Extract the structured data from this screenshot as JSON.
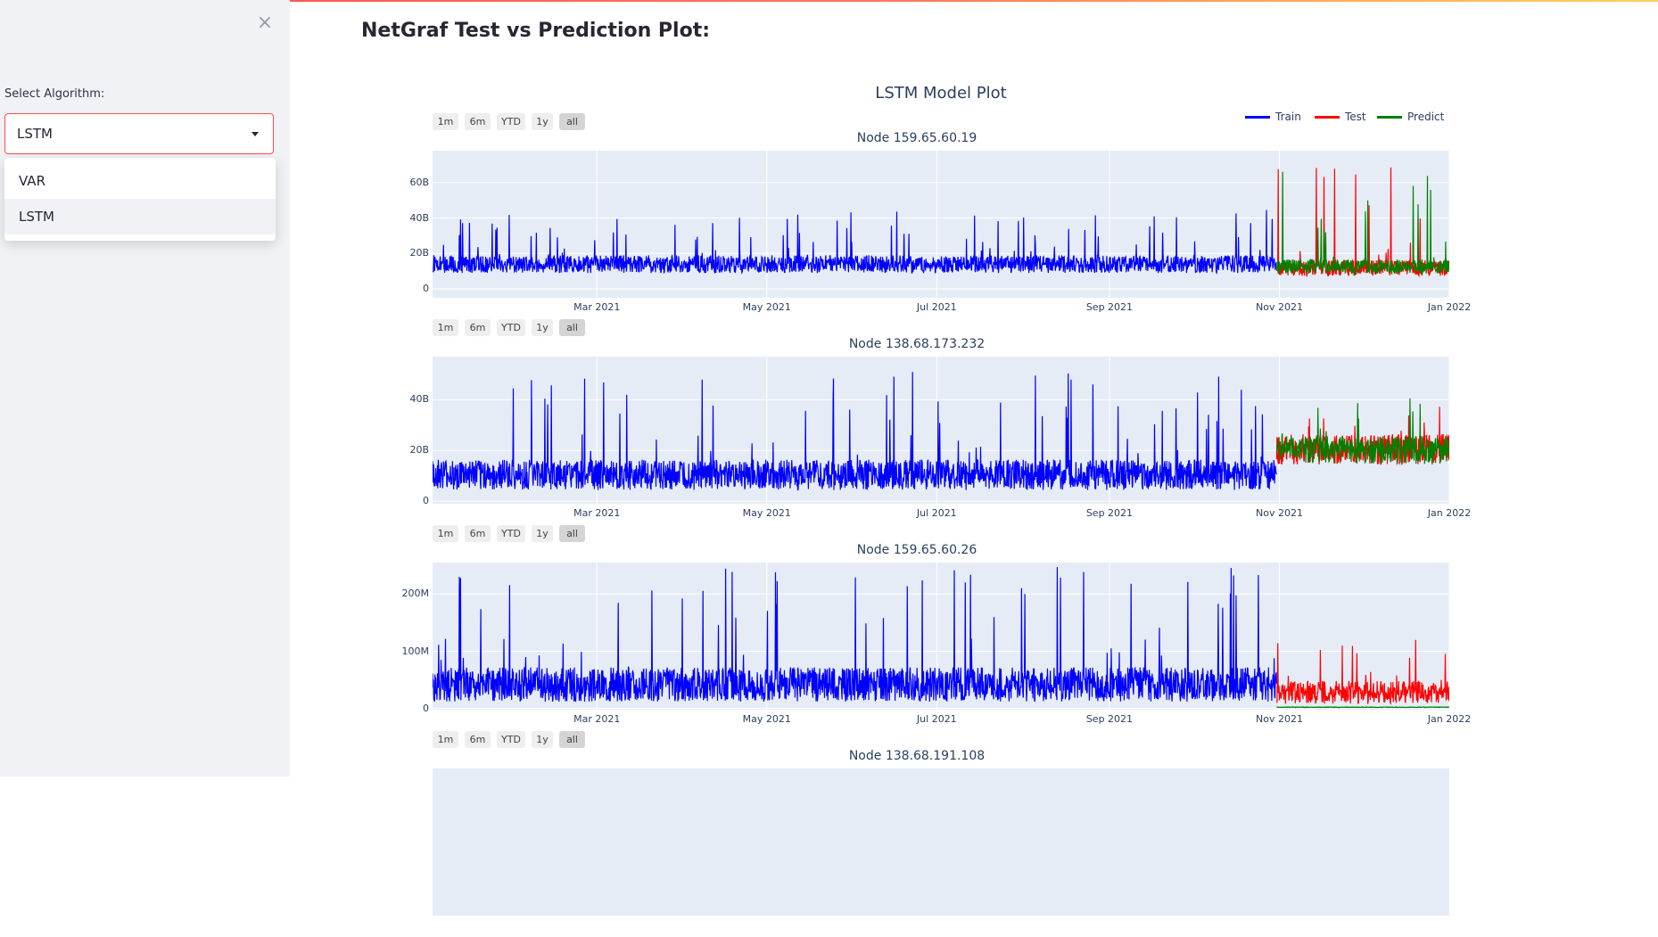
{
  "sidebar": {
    "close_label": "×",
    "select_label": "Select Algorithm:",
    "selected_value": "LSTM",
    "options": [
      "VAR",
      "LSTM"
    ]
  },
  "main": {
    "title": "NetGraf Test vs Prediction Plot:"
  },
  "figure": {
    "title": "LSTM Model Plot",
    "legend": [
      "Train",
      "Test",
      "Predict"
    ],
    "range_buttons": [
      "1m",
      "6m",
      "YTD",
      "1y",
      "all"
    ],
    "active_range": "all"
  },
  "colors": {
    "train": "#0000ff",
    "test": "#ff0000",
    "predict": "#008000",
    "plot_bg": "#e5ecf6"
  },
  "chart_data": [
    {
      "type": "line",
      "title": "Node 159.65.60.19",
      "x_range": [
        "2021-01-01",
        "2022-01-01"
      ],
      "x_ticks": [
        "Mar 2021",
        "May 2021",
        "Jul 2021",
        "Sep 2021",
        "Nov 2021",
        "Jan 2022"
      ],
      "y_ticks": [
        "0",
        "20B",
        "40B",
        "60B"
      ],
      "y_range": [
        -5,
        78
      ],
      "series": [
        {
          "name": "Train",
          "x_range": [
            "2021-01-01",
            "2021-10-31"
          ],
          "baseline": 12,
          "spread": 10,
          "max": 45
        },
        {
          "name": "Test",
          "x_range": [
            "2021-10-31",
            "2022-01-01"
          ],
          "baseline": 10,
          "spread": 9,
          "max": 75
        },
        {
          "name": "Predict",
          "x_range": [
            "2021-10-31",
            "2022-01-01"
          ],
          "baseline": 11,
          "spread": 8,
          "max": 70
        }
      ]
    },
    {
      "type": "line",
      "title": "Node 138.68.173.232",
      "x_range": [
        "2021-01-01",
        "2022-01-01"
      ],
      "x_ticks": [
        "Mar 2021",
        "May 2021",
        "Jul 2021",
        "Sep 2021",
        "Nov 2021",
        "Jan 2022"
      ],
      "y_ticks": [
        "0",
        "20B",
        "40B"
      ],
      "y_range": [
        -1,
        57
      ],
      "series": [
        {
          "name": "Train",
          "x_range": [
            "2021-01-01",
            "2021-10-31"
          ],
          "baseline": 8,
          "spread": 12,
          "max": 52
        },
        {
          "name": "Test",
          "x_range": [
            "2021-10-31",
            "2022-01-01"
          ],
          "baseline": 18,
          "spread": 12,
          "max": 43
        },
        {
          "name": "Predict",
          "x_range": [
            "2021-10-31",
            "2022-01-01"
          ],
          "baseline": 18,
          "spread": 11,
          "max": 41
        }
      ]
    },
    {
      "type": "line",
      "title": "Node 159.65.60.26",
      "x_range": [
        "2021-01-01",
        "2022-01-01"
      ],
      "x_ticks": [
        "Mar 2021",
        "May 2021",
        "Jul 2021",
        "Sep 2021",
        "Nov 2021",
        "Jan 2022"
      ],
      "y_ticks": [
        "0",
        "100M",
        "200M"
      ],
      "y_range": [
        -2,
        255
      ],
      "series": [
        {
          "name": "Train",
          "x_range": [
            "2021-01-01",
            "2021-10-31"
          ],
          "baseline": 30,
          "spread": 60,
          "max": 250
        },
        {
          "name": "Test",
          "x_range": [
            "2021-10-31",
            "2022-01-01"
          ],
          "baseline": 20,
          "spread": 40,
          "max": 120
        },
        {
          "name": "Predict",
          "x_range": [
            "2021-10-31",
            "2022-01-01"
          ],
          "baseline": 2,
          "spread": 1,
          "max": 3
        }
      ]
    },
    {
      "type": "line",
      "title": "Node 138.68.191.108"
    }
  ]
}
